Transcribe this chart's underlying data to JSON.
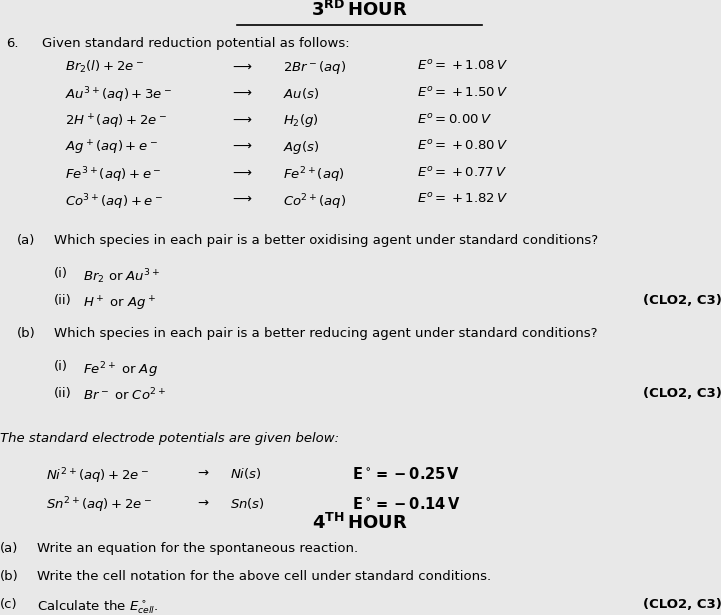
{
  "background_color": "#e8e8e8",
  "title_text": "3",
  "title_sup": "RD",
  "title_main": " HOUR",
  "footer_text": "4",
  "footer_sup": "TH",
  "footer_main": " HOUR",
  "font_size_title": 12,
  "font_size_body": 9.5,
  "font_size_bold": 9.5,
  "reactions": [
    [
      "Br₂(l) + 2e⁻  →  2Br⁻(aq)",
      "E° =+ 1.08 V"
    ],
    [
      "Au³⁺(aq) + 3e⁻  →  Au(s)",
      "E° = +1.50 V"
    ],
    [
      "2H⁺(aq) + 2e⁻  →  H₂(g)",
      "E° = 0.00 V"
    ],
    [
      "Ag⁺ (aq) + e⁻  →  Ag(s)",
      "E° = +0.80 V"
    ],
    [
      "Fe³⁺(aq) + e⁻  →  Fe²⁺(aq)",
      "E° = +0.77 V"
    ],
    [
      "Co³⁺(aq) + e⁻  →  Co²⁺(aq)",
      "E° = +1.82 V"
    ]
  ]
}
